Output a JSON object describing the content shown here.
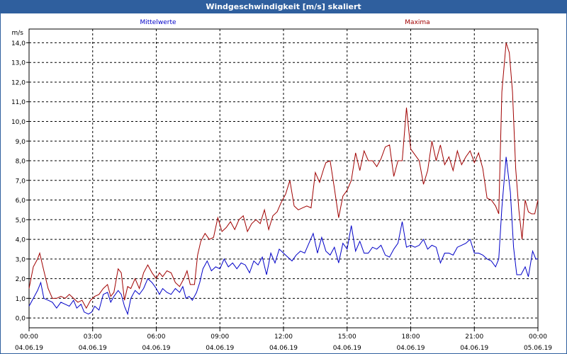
{
  "window": {
    "title": "Windgeschwindigkeit [m/s] skaliert"
  },
  "chart_data": {
    "type": "line",
    "title": "Windgeschwindigkeit [m/s] skaliert",
    "ylabel": "m/s",
    "xlabel": "",
    "ylim": [
      -0.5,
      14.7
    ],
    "xlim": [
      "04.06.19 00:00",
      "05.06.19 00:00"
    ],
    "y_ticks": [
      "0,0",
      "1,0",
      "2,0",
      "3,0",
      "4,0",
      "5,0",
      "6,0",
      "7,0",
      "8,0",
      "9,0",
      "10,0",
      "11,0",
      "12,0",
      "13,0",
      "14,0"
    ],
    "x_ticks": [
      {
        "time": "00:00",
        "date": "04.06.19"
      },
      {
        "time": "03:00",
        "date": "04.06.19"
      },
      {
        "time": "06:00",
        "date": "04.06.19"
      },
      {
        "time": "09:00",
        "date": "04.06.19"
      },
      {
        "time": "12:00",
        "date": "04.06.19"
      },
      {
        "time": "15:00",
        "date": "04.06.19"
      },
      {
        "time": "18:00",
        "date": "04.06.19"
      },
      {
        "time": "21:00",
        "date": "04.06.19"
      },
      {
        "time": "00:00",
        "date": "05.06.19"
      }
    ],
    "grid": true,
    "legend_position": "top",
    "x_unit": "hours since 04.06.19 00:00",
    "series": [
      {
        "name": "Mittelwerte",
        "color": "#0000c8",
        "points": [
          [
            0.0,
            0.6
          ],
          [
            0.2,
            1.0
          ],
          [
            0.4,
            1.4
          ],
          [
            0.55,
            1.8
          ],
          [
            0.7,
            1.0
          ],
          [
            0.9,
            0.9
          ],
          [
            1.1,
            0.8
          ],
          [
            1.3,
            0.5
          ],
          [
            1.5,
            0.8
          ],
          [
            1.7,
            0.7
          ],
          [
            1.9,
            0.6
          ],
          [
            2.1,
            0.9
          ],
          [
            2.25,
            0.5
          ],
          [
            2.45,
            0.7
          ],
          [
            2.6,
            0.3
          ],
          [
            2.8,
            0.2
          ],
          [
            2.95,
            0.3
          ],
          [
            3.1,
            0.6
          ],
          [
            3.3,
            0.4
          ],
          [
            3.5,
            1.2
          ],
          [
            3.7,
            1.3
          ],
          [
            3.85,
            0.8
          ],
          [
            4.0,
            1.1
          ],
          [
            4.2,
            1.4
          ],
          [
            4.35,
            1.2
          ],
          [
            4.5,
            0.6
          ],
          [
            4.65,
            0.2
          ],
          [
            4.8,
            1.0
          ],
          [
            5.0,
            1.4
          ],
          [
            5.2,
            1.2
          ],
          [
            5.4,
            1.5
          ],
          [
            5.6,
            2.0
          ],
          [
            5.8,
            1.8
          ],
          [
            6.0,
            1.5
          ],
          [
            6.15,
            1.2
          ],
          [
            6.3,
            1.5
          ],
          [
            6.5,
            1.3
          ],
          [
            6.7,
            1.2
          ],
          [
            6.9,
            1.5
          ],
          [
            7.1,
            1.3
          ],
          [
            7.25,
            1.6
          ],
          [
            7.4,
            1.0
          ],
          [
            7.55,
            1.1
          ],
          [
            7.7,
            0.9
          ],
          [
            7.9,
            1.3
          ],
          [
            8.05,
            1.8
          ],
          [
            8.2,
            2.5
          ],
          [
            8.4,
            2.9
          ],
          [
            8.6,
            2.4
          ],
          [
            8.8,
            2.6
          ],
          [
            9.0,
            2.5
          ],
          [
            9.2,
            3.0
          ],
          [
            9.4,
            2.6
          ],
          [
            9.6,
            2.8
          ],
          [
            9.8,
            2.5
          ],
          [
            10.0,
            2.8
          ],
          [
            10.2,
            2.7
          ],
          [
            10.4,
            2.3
          ],
          [
            10.6,
            2.9
          ],
          [
            10.8,
            2.7
          ],
          [
            11.0,
            3.1
          ],
          [
            11.2,
            2.2
          ],
          [
            11.4,
            3.3
          ],
          [
            11.6,
            2.8
          ],
          [
            11.8,
            3.5
          ],
          [
            12.0,
            3.3
          ],
          [
            12.2,
            3.1
          ],
          [
            12.4,
            2.9
          ],
          [
            12.6,
            3.2
          ],
          [
            12.8,
            3.4
          ],
          [
            13.0,
            3.3
          ],
          [
            13.2,
            3.8
          ],
          [
            13.4,
            4.3
          ],
          [
            13.6,
            3.3
          ],
          [
            13.8,
            4.1
          ],
          [
            14.0,
            3.4
          ],
          [
            14.2,
            3.2
          ],
          [
            14.4,
            3.6
          ],
          [
            14.6,
            2.8
          ],
          [
            14.8,
            3.8
          ],
          [
            15.0,
            3.5
          ],
          [
            15.2,
            4.7
          ],
          [
            15.4,
            3.4
          ],
          [
            15.6,
            3.9
          ],
          [
            15.8,
            3.3
          ],
          [
            16.0,
            3.3
          ],
          [
            16.2,
            3.6
          ],
          [
            16.4,
            3.5
          ],
          [
            16.6,
            3.7
          ],
          [
            16.8,
            3.2
          ],
          [
            17.0,
            3.1
          ],
          [
            17.2,
            3.5
          ],
          [
            17.4,
            3.8
          ],
          [
            17.6,
            4.9
          ],
          [
            17.8,
            3.6
          ],
          [
            18.0,
            3.7
          ],
          [
            18.2,
            3.6
          ],
          [
            18.4,
            3.7
          ],
          [
            18.6,
            4.0
          ],
          [
            18.8,
            3.5
          ],
          [
            19.0,
            3.7
          ],
          [
            19.2,
            3.6
          ],
          [
            19.4,
            2.8
          ],
          [
            19.6,
            3.3
          ],
          [
            19.8,
            3.3
          ],
          [
            20.0,
            3.2
          ],
          [
            20.2,
            3.6
          ],
          [
            20.4,
            3.7
          ],
          [
            20.6,
            3.8
          ],
          [
            20.8,
            4.0
          ],
          [
            21.0,
            3.3
          ],
          [
            21.2,
            3.3
          ],
          [
            21.4,
            3.2
          ],
          [
            21.6,
            3.0
          ],
          [
            21.8,
            2.9
          ],
          [
            22.0,
            2.6
          ],
          [
            22.15,
            3.0
          ],
          [
            22.3,
            5.6
          ],
          [
            22.5,
            8.2
          ],
          [
            22.7,
            6.4
          ],
          [
            22.85,
            3.6
          ],
          [
            23.0,
            2.2
          ],
          [
            23.2,
            2.2
          ],
          [
            23.4,
            2.6
          ],
          [
            23.55,
            2.1
          ],
          [
            23.75,
            3.4
          ],
          [
            23.9,
            3.0
          ],
          [
            24.0,
            3.0
          ]
        ]
      },
      {
        "name": "Maxima",
        "color": "#a00000",
        "points": [
          [
            0.0,
            1.5
          ],
          [
            0.2,
            2.6
          ],
          [
            0.4,
            3.0
          ],
          [
            0.5,
            3.3
          ],
          [
            0.7,
            2.4
          ],
          [
            0.9,
            1.5
          ],
          [
            1.1,
            1.0
          ],
          [
            1.3,
            1.0
          ],
          [
            1.5,
            1.1
          ],
          [
            1.7,
            1.0
          ],
          [
            1.9,
            1.2
          ],
          [
            2.1,
            1.0
          ],
          [
            2.3,
            0.8
          ],
          [
            2.5,
            0.9
          ],
          [
            2.7,
            0.5
          ],
          [
            2.9,
            0.9
          ],
          [
            3.1,
            1.1
          ],
          [
            3.3,
            1.2
          ],
          [
            3.5,
            1.5
          ],
          [
            3.7,
            1.7
          ],
          [
            3.85,
            1.1
          ],
          [
            4.0,
            1.3
          ],
          [
            4.2,
            2.5
          ],
          [
            4.35,
            2.3
          ],
          [
            4.5,
            0.9
          ],
          [
            4.65,
            1.6
          ],
          [
            4.8,
            1.5
          ],
          [
            5.0,
            2.0
          ],
          [
            5.2,
            1.5
          ],
          [
            5.4,
            2.3
          ],
          [
            5.6,
            2.7
          ],
          [
            5.8,
            2.3
          ],
          [
            6.0,
            2.0
          ],
          [
            6.15,
            2.3
          ],
          [
            6.3,
            2.1
          ],
          [
            6.5,
            2.4
          ],
          [
            6.7,
            2.3
          ],
          [
            6.9,
            1.8
          ],
          [
            7.1,
            1.6
          ],
          [
            7.3,
            2.0
          ],
          [
            7.45,
            2.4
          ],
          [
            7.6,
            1.7
          ],
          [
            7.8,
            1.7
          ],
          [
            7.95,
            3.2
          ],
          [
            8.1,
            3.9
          ],
          [
            8.3,
            4.3
          ],
          [
            8.5,
            4.0
          ],
          [
            8.7,
            4.1
          ],
          [
            8.9,
            5.1
          ],
          [
            9.1,
            4.4
          ],
          [
            9.3,
            4.6
          ],
          [
            9.5,
            4.9
          ],
          [
            9.7,
            4.5
          ],
          [
            9.9,
            5.0
          ],
          [
            10.1,
            5.2
          ],
          [
            10.3,
            4.4
          ],
          [
            10.5,
            4.8
          ],
          [
            10.7,
            5.0
          ],
          [
            10.9,
            4.8
          ],
          [
            11.1,
            5.5
          ],
          [
            11.3,
            4.5
          ],
          [
            11.5,
            5.2
          ],
          [
            11.7,
            5.4
          ],
          [
            11.9,
            5.9
          ],
          [
            12.1,
            6.3
          ],
          [
            12.3,
            7.0
          ],
          [
            12.5,
            5.7
          ],
          [
            12.7,
            5.5
          ],
          [
            12.9,
            5.6
          ],
          [
            13.1,
            5.7
          ],
          [
            13.3,
            5.6
          ],
          [
            13.5,
            7.4
          ],
          [
            13.7,
            6.9
          ],
          [
            13.9,
            7.6
          ],
          [
            14.0,
            7.9
          ],
          [
            14.2,
            8.0
          ],
          [
            14.4,
            6.6
          ],
          [
            14.6,
            5.1
          ],
          [
            14.8,
            6.2
          ],
          [
            15.0,
            6.5
          ],
          [
            15.2,
            7.0
          ],
          [
            15.4,
            8.4
          ],
          [
            15.6,
            7.5
          ],
          [
            15.8,
            8.5
          ],
          [
            16.0,
            8.0
          ],
          [
            16.2,
            8.0
          ],
          [
            16.4,
            7.7
          ],
          [
            16.6,
            8.1
          ],
          [
            16.8,
            8.7
          ],
          [
            17.0,
            8.8
          ],
          [
            17.2,
            7.2
          ],
          [
            17.4,
            8.0
          ],
          [
            17.6,
            8.0
          ],
          [
            17.8,
            10.7
          ],
          [
            18.0,
            8.6
          ],
          [
            18.2,
            8.3
          ],
          [
            18.4,
            8.0
          ],
          [
            18.6,
            6.8
          ],
          [
            18.8,
            7.5
          ],
          [
            19.0,
            9.0
          ],
          [
            19.2,
            8.0
          ],
          [
            19.4,
            8.8
          ],
          [
            19.6,
            7.8
          ],
          [
            19.8,
            8.2
          ],
          [
            20.0,
            7.5
          ],
          [
            20.2,
            8.5
          ],
          [
            20.4,
            7.8
          ],
          [
            20.6,
            8.2
          ],
          [
            20.8,
            8.5
          ],
          [
            21.0,
            7.9
          ],
          [
            21.2,
            8.4
          ],
          [
            21.4,
            7.6
          ],
          [
            21.6,
            6.1
          ],
          [
            21.8,
            6.0
          ],
          [
            22.0,
            5.7
          ],
          [
            22.15,
            5.3
          ],
          [
            22.3,
            11.5
          ],
          [
            22.5,
            14.0
          ],
          [
            22.65,
            13.5
          ],
          [
            22.8,
            11.5
          ],
          [
            22.95,
            7.6
          ],
          [
            23.1,
            5.5
          ],
          [
            23.25,
            4.0
          ],
          [
            23.4,
            6.0
          ],
          [
            23.55,
            5.4
          ],
          [
            23.7,
            5.3
          ],
          [
            23.85,
            5.3
          ],
          [
            24.0,
            6.0
          ]
        ]
      }
    ]
  }
}
